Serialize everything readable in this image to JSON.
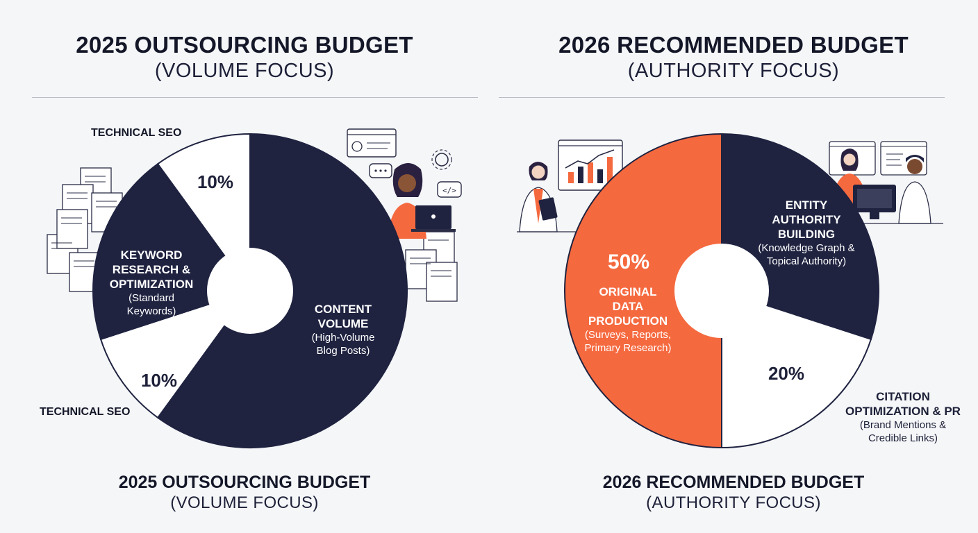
{
  "colors": {
    "navy": "#1f2340",
    "white": "#ffffff",
    "orange": "#f5693f",
    "background": "#f5f6f8"
  },
  "chart_data": [
    {
      "type": "pie",
      "title": "2025 OUTSOURCING BUDGET",
      "subtitle": "(VOLUME FOCUS)",
      "footer_title": "2025 OUTSOURCING BUDGET",
      "footer_subtitle": "(VOLUME FOCUS)",
      "slices": [
        {
          "name": "CONTENT VOLUME",
          "detail": "(High-Volume Blog Posts)",
          "value": 60,
          "label": "",
          "color": "#1f2340"
        },
        {
          "name": "TECHNICAL SEO",
          "detail": "",
          "value": 10,
          "label": "10%",
          "color": "#ffffff"
        },
        {
          "name": "KEYWORD RESEARCH & OPTIMIZATION",
          "detail": "(Standard Keywords)",
          "value": 20,
          "label": "",
          "color": "#1f2340"
        },
        {
          "name": "TECHNICAL SEO",
          "detail": "",
          "value": 10,
          "label": "10%",
          "color": "#ffffff"
        }
      ],
      "labels": {
        "technical_seo_top": "TECHNICAL SEO",
        "technical_seo_bottom": "TECHNICAL SEO",
        "pct_top": "10%",
        "pct_bottom": "10%",
        "keyword_l1": "KEYWORD",
        "keyword_l2": "RESEARCH &",
        "keyword_l3": "OPTIMIZATION",
        "keyword_d1": "(Standard",
        "keyword_d2": "Keywords)",
        "content_l1": "CONTENT",
        "content_l2": "VOLUME",
        "content_d1": "(High-Volume",
        "content_d2": "Blog Posts)"
      }
    },
    {
      "type": "pie",
      "title": "2026 RECOMMENDED BUDGET",
      "subtitle": "(AUTHORITY FOCUS)",
      "footer_title": "2026 RECOMMENDED BUDGET",
      "footer_subtitle": "(AUTHORITY FOCUS)",
      "slices": [
        {
          "name": "ENTITY AUTHORITY BUILDING",
          "detail": "(Knowledge Graph & Topical Authority)",
          "value": 30,
          "label": "",
          "color": "#1f2340"
        },
        {
          "name": "CITATION OPTIMIZATION & PR",
          "detail": "(Brand Mentions & Credible Links)",
          "value": 20,
          "label": "20%",
          "color": "#ffffff"
        },
        {
          "name": "ORIGINAL DATA PRODUCTION",
          "detail": "(Surveys, Reports, Primary Research)",
          "value": 50,
          "label": "50%",
          "color": "#f5693f"
        }
      ],
      "labels": {
        "pct_orange": "50%",
        "pct_white": "20%",
        "orig_l1": "ORIGINAL",
        "orig_l2": "DATA",
        "orig_l3": "PRODUCTION",
        "orig_d1": "(Surveys, Reports,",
        "orig_d2": "Primary Research)",
        "entity_l1": "ENTITY",
        "entity_l2": "AUTHORITY",
        "entity_l3": "BUILDING",
        "entity_d1": "(Knowledge Graph &",
        "entity_d2": "Topical Authority)",
        "citation_l1": "CITATION",
        "citation_l2": "OPTIMIZATION & PR",
        "citation_d1": "(Brand Mentions &",
        "citation_d2": "Credible Links)"
      }
    }
  ],
  "icons": {
    "left": [
      "document-stack-icon",
      "support-agent-illustration",
      "gear-icon",
      "chat-bubble-icon",
      "code-bubble-icon",
      "profile-window-icon"
    ],
    "right": [
      "analyst-with-chart-illustration",
      "video-call-illustration"
    ]
  }
}
